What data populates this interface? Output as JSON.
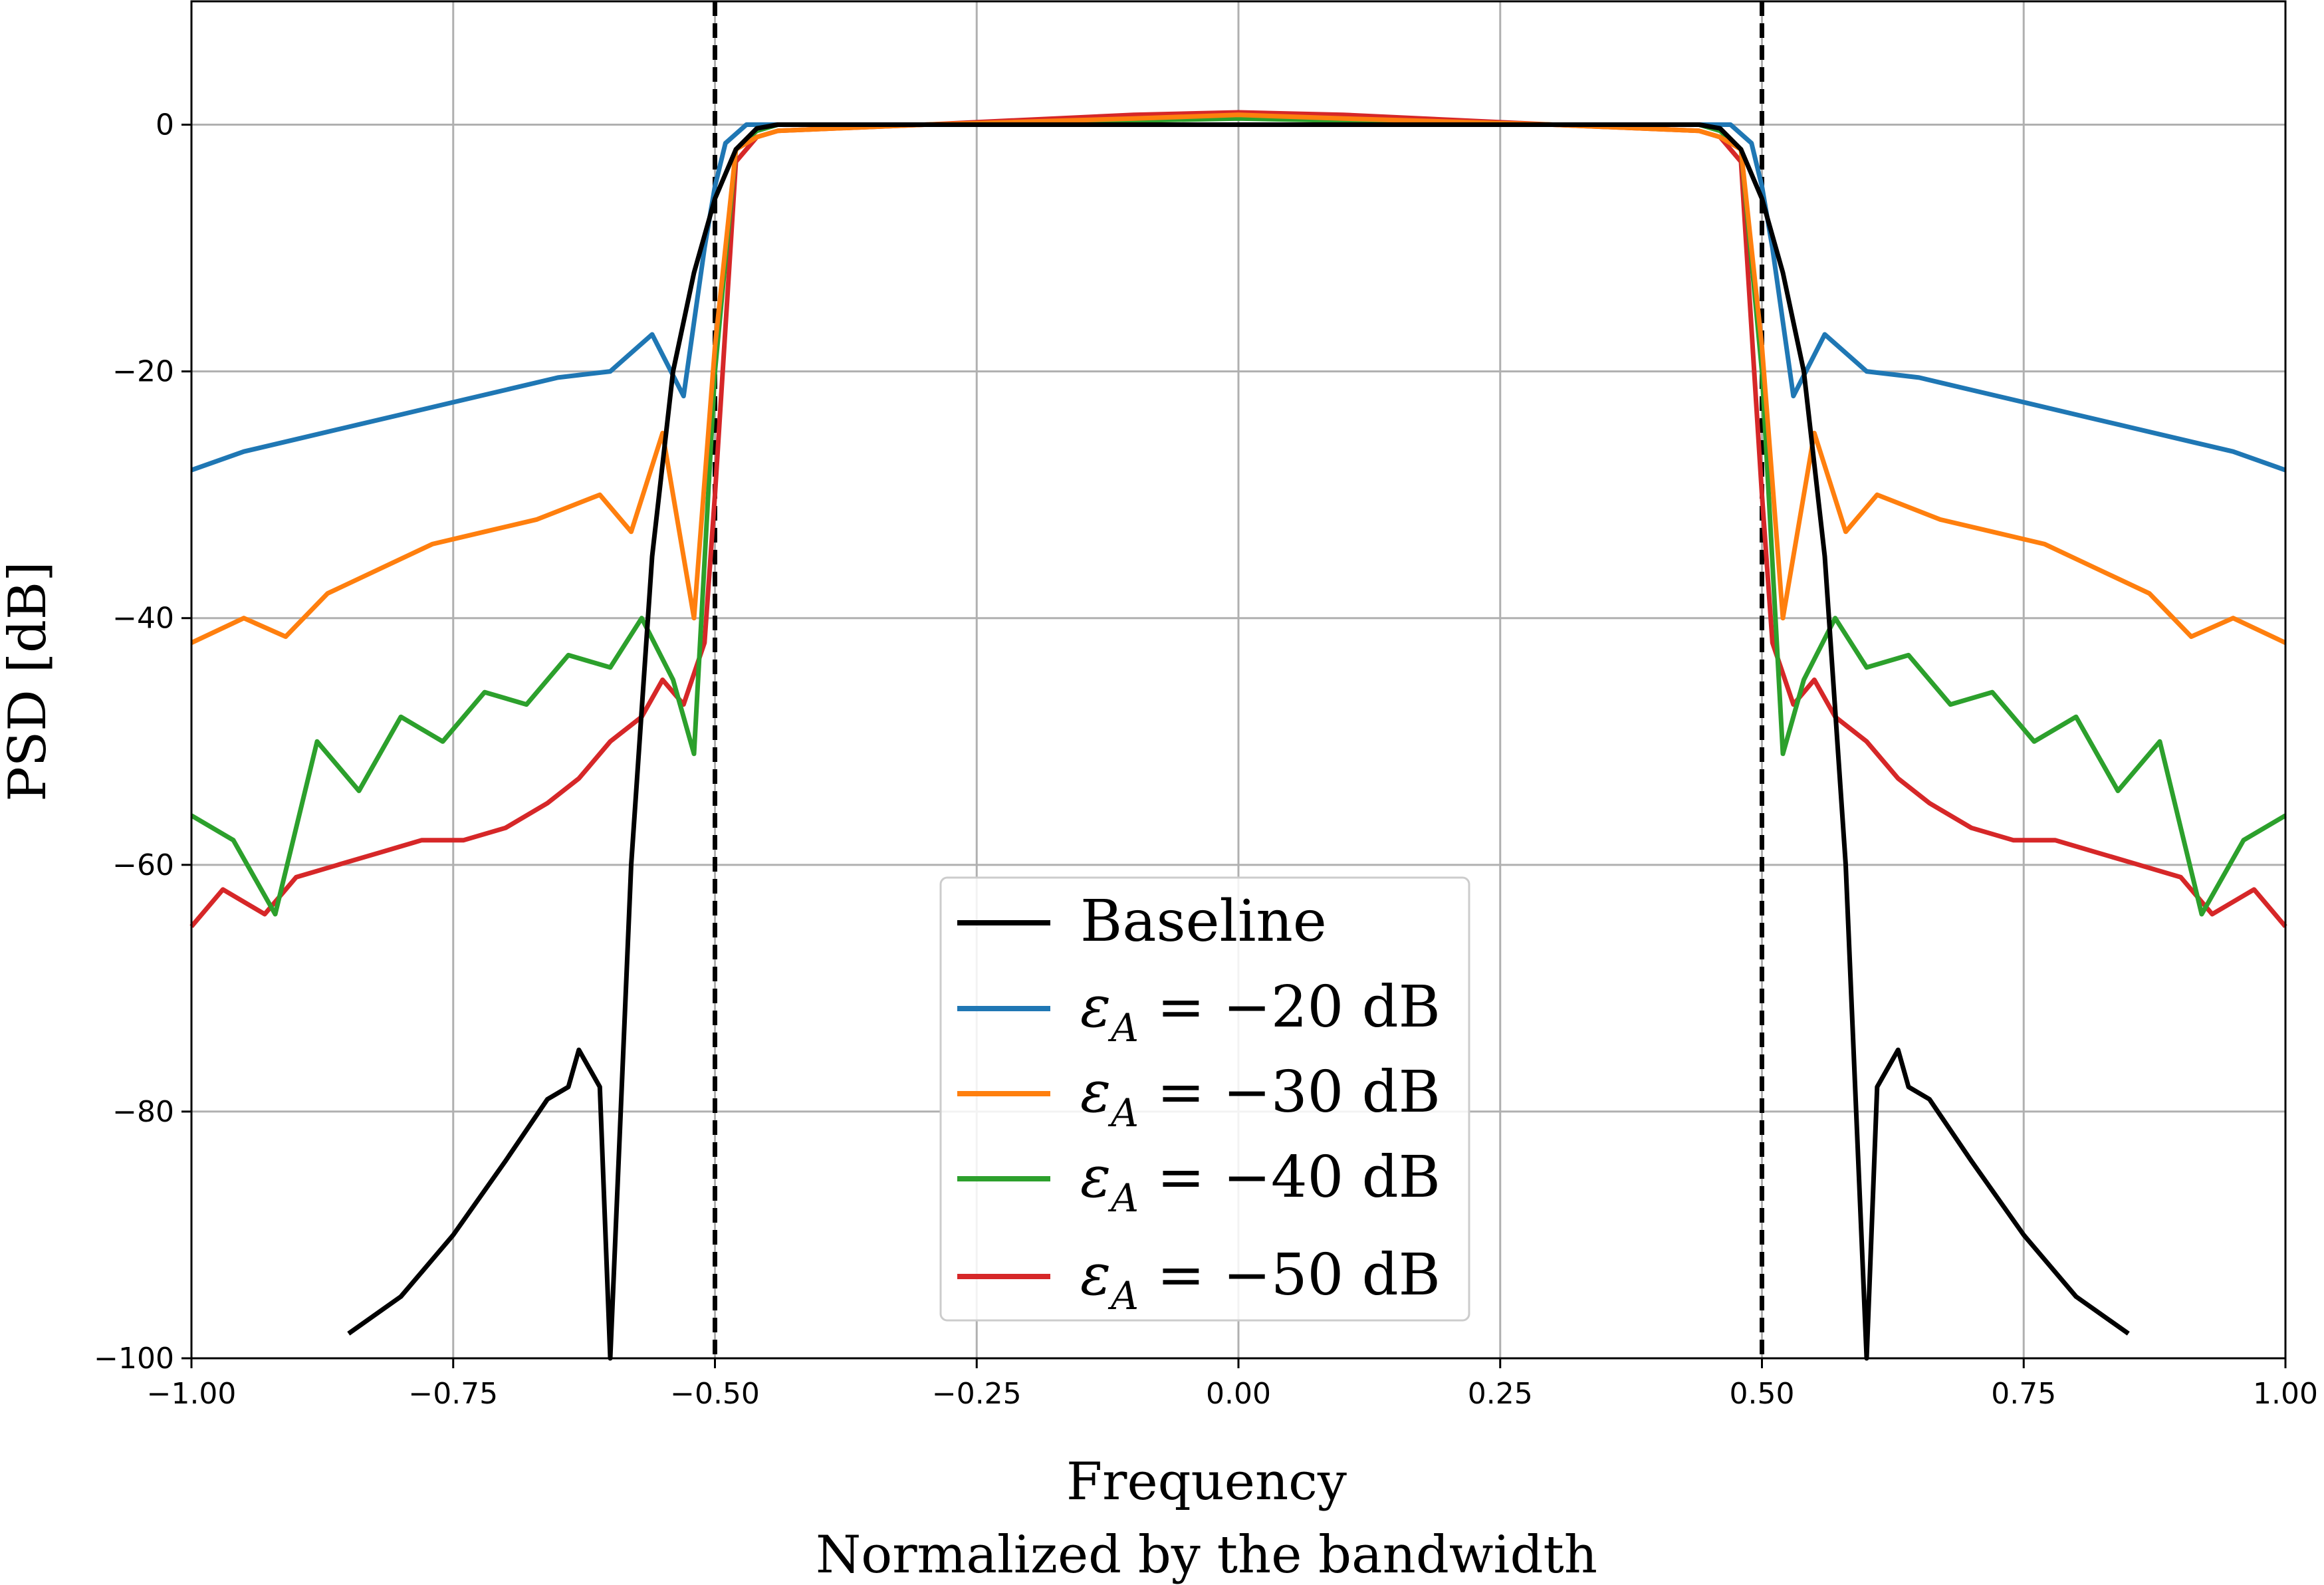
{
  "chart_data": {
    "type": "line",
    "xlabel_line1": "Frequency",
    "xlabel_line2": "Normalized by the bandwidth",
    "ylabel": "PSD [dB]",
    "xlim": [
      -1.0,
      1.0
    ],
    "ylim": [
      -100,
      10
    ],
    "xticks": [
      "−1.00",
      "−0.75",
      "−0.50",
      "−0.25",
      "0.00",
      "0.25",
      "0.50",
      "0.75",
      "1.00"
    ],
    "yticks": [
      "−100",
      "−80",
      "−60",
      "−40",
      "−20",
      "0"
    ],
    "grid": true,
    "vlines": [
      -0.5,
      0.5
    ],
    "legend_position": "lower-center",
    "series": [
      {
        "name": "Baseline",
        "color": "#000000",
        "x": [
          -0.85,
          -0.8,
          -0.75,
          -0.7,
          -0.66,
          -0.64,
          -0.63,
          -0.61,
          -0.6,
          -0.58,
          -0.56,
          -0.54,
          -0.52,
          -0.5,
          -0.48,
          -0.46,
          -0.44,
          -0.42,
          -0.3,
          0.0,
          0.3,
          0.42,
          0.44,
          0.46,
          0.48,
          0.5,
          0.52,
          0.54,
          0.56,
          0.58,
          0.6,
          0.61,
          0.63,
          0.64,
          0.66,
          0.7,
          0.75,
          0.8,
          0.85
        ],
        "y": [
          -98,
          -95,
          -90,
          -84,
          -79,
          -78,
          -75,
          -78,
          -100,
          -60,
          -35,
          -20,
          -12,
          -6,
          -2,
          -0.3,
          0,
          0,
          0,
          0,
          0,
          0,
          0,
          -0.3,
          -2,
          -6,
          -12,
          -20,
          -35,
          -60,
          -100,
          -78,
          -75,
          -78,
          -79,
          -84,
          -90,
          -95,
          -98
        ]
      },
      {
        "name": "ε_A = −20 dB",
        "label_math": "ε",
        "label_sub": "A",
        "label_rest": " = −20 dB",
        "color": "#1f77b4",
        "x": [
          -1.0,
          -0.95,
          -0.9,
          -0.85,
          -0.8,
          -0.75,
          -0.7,
          -0.65,
          -0.6,
          -0.56,
          -0.53,
          -0.51,
          -0.5,
          -0.49,
          -0.47,
          -0.45,
          -0.3,
          0.0,
          0.3,
          0.45,
          0.47,
          0.49,
          0.5,
          0.51,
          0.53,
          0.56,
          0.6,
          0.65,
          0.7,
          0.75,
          0.8,
          0.85,
          0.9,
          0.95,
          1.0
        ],
        "y": [
          -28,
          -26.5,
          -25.5,
          -24.5,
          -23.5,
          -22.5,
          -21.5,
          -20.5,
          -20,
          -17,
          -22,
          -10,
          -5,
          -1.5,
          0,
          0,
          0,
          0,
          0,
          0,
          0,
          -1.5,
          -5,
          -10,
          -22,
          -17,
          -20,
          -20.5,
          -21.5,
          -22.5,
          -23.5,
          -24.5,
          -25.5,
          -26.5,
          -28
        ]
      },
      {
        "name": "ε_A = −30 dB",
        "label_math": "ε",
        "label_sub": "A",
        "label_rest": " = −30 dB",
        "color": "#ff7f0e",
        "x": [
          -1.0,
          -0.95,
          -0.91,
          -0.87,
          -0.82,
          -0.77,
          -0.72,
          -0.67,
          -0.61,
          -0.58,
          -0.55,
          -0.52,
          -0.5,
          -0.48,
          -0.46,
          -0.44,
          -0.3,
          -0.1,
          0.0,
          0.1,
          0.3,
          0.44,
          0.46,
          0.48,
          0.5,
          0.52,
          0.55,
          0.58,
          0.61,
          0.67,
          0.72,
          0.77,
          0.82,
          0.87,
          0.91,
          0.95,
          1.0
        ],
        "y": [
          -42,
          -40,
          -41.5,
          -38,
          -36,
          -34,
          -33,
          -32,
          -30,
          -33,
          -25,
          -40,
          -18,
          -2,
          -1,
          -0.5,
          0,
          0.5,
          0.8,
          0.5,
          0,
          -0.5,
          -1,
          -2,
          -18,
          -40,
          -25,
          -33,
          -30,
          -32,
          -33,
          -34,
          -36,
          -38,
          -41.5,
          -40,
          -42
        ]
      },
      {
        "name": "ε_A = −40 dB",
        "label_math": "ε",
        "label_sub": "A",
        "label_rest": " = −40 dB",
        "color": "#2ca02c",
        "x": [
          -1.0,
          -0.96,
          -0.92,
          -0.88,
          -0.84,
          -0.8,
          -0.76,
          -0.72,
          -0.68,
          -0.64,
          -0.6,
          -0.57,
          -0.54,
          -0.52,
          -0.5,
          -0.48,
          -0.46,
          -0.44,
          -0.3,
          0.0,
          0.3,
          0.44,
          0.46,
          0.48,
          0.5,
          0.52,
          0.54,
          0.57,
          0.6,
          0.64,
          0.68,
          0.72,
          0.76,
          0.8,
          0.84,
          0.88,
          0.92,
          0.96,
          1.0
        ],
        "y": [
          -56,
          -58,
          -64,
          -50,
          -54,
          -48,
          -50,
          -46,
          -47,
          -43,
          -44,
          -40,
          -45,
          -51,
          -20,
          -2,
          -0.5,
          0,
          0,
          0.5,
          0,
          0,
          -0.5,
          -2,
          -20,
          -51,
          -45,
          -40,
          -44,
          -43,
          -47,
          -46,
          -50,
          -48,
          -54,
          -50,
          -64,
          -58,
          -56
        ]
      },
      {
        "name": "ε_A = −50 dB",
        "label_math": "ε",
        "label_sub": "A",
        "label_rest": " = −50 dB",
        "color": "#d62728",
        "x": [
          -1.0,
          -0.97,
          -0.93,
          -0.9,
          -0.86,
          -0.82,
          -0.78,
          -0.74,
          -0.7,
          -0.66,
          -0.63,
          -0.6,
          -0.57,
          -0.55,
          -0.53,
          -0.51,
          -0.5,
          -0.48,
          -0.46,
          -0.44,
          -0.3,
          -0.1,
          0.0,
          0.1,
          0.3,
          0.44,
          0.46,
          0.48,
          0.5,
          0.51,
          0.53,
          0.55,
          0.57,
          0.6,
          0.63,
          0.66,
          0.7,
          0.74,
          0.78,
          0.82,
          0.86,
          0.9,
          0.93,
          0.97,
          1.0
        ],
        "y": [
          -65,
          -62,
          -64,
          -61,
          -60,
          -59,
          -58,
          -58,
          -57,
          -55,
          -53,
          -50,
          -48,
          -45,
          -47,
          -42,
          -30,
          -3,
          -1,
          -0.5,
          0,
          0.8,
          1,
          0.8,
          0,
          -0.5,
          -1,
          -3,
          -30,
          -42,
          -47,
          -45,
          -48,
          -50,
          -53,
          -55,
          -57,
          -58,
          -58,
          -59,
          -60,
          -61,
          -64,
          -62,
          -65
        ]
      }
    ]
  }
}
